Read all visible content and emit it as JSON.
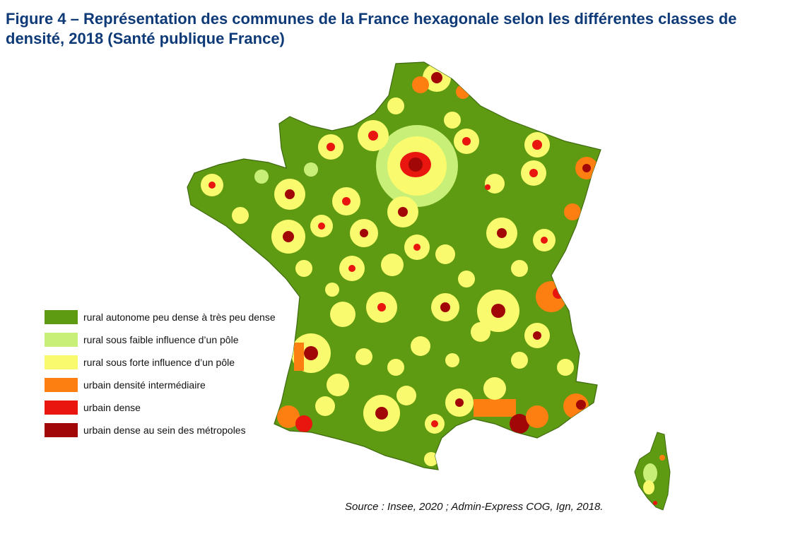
{
  "figure": {
    "title": "Figure 4 – Représentation des communes de la France hexagonale selon les différentes classes de densité, 2018 (Santé publique France)",
    "source": "Source : Insee, 2020 ; Admin-Express COG, Ign, 2018."
  },
  "colors": {
    "rural_autonome": "#5e9a12",
    "rural_faible_influence": "#c8ef78",
    "rural_forte_influence": "#fafa6e",
    "urbain_intermediaire": "#fd7f12",
    "urbain_dense": "#e8160f",
    "urbain_metropoles": "#a20708",
    "border": "#3f6a10"
  },
  "legend": {
    "items": [
      {
        "label": "rural autonome peu dense à très peu dense",
        "color": "#5e9a12"
      },
      {
        "label": "rural sous faible influence d’un pôle",
        "color": "#c8ef78"
      },
      {
        "label": "rural sous forte influence d’un pôle",
        "color": "#fafa6e"
      },
      {
        "label": "urbain densité intermédiaire",
        "color": "#fd7f12"
      },
      {
        "label": "urbain dense",
        "color": "#e8160f"
      },
      {
        "label": "urbain dense au sein des métropoles",
        "color": "#a20708"
      }
    ]
  }
}
